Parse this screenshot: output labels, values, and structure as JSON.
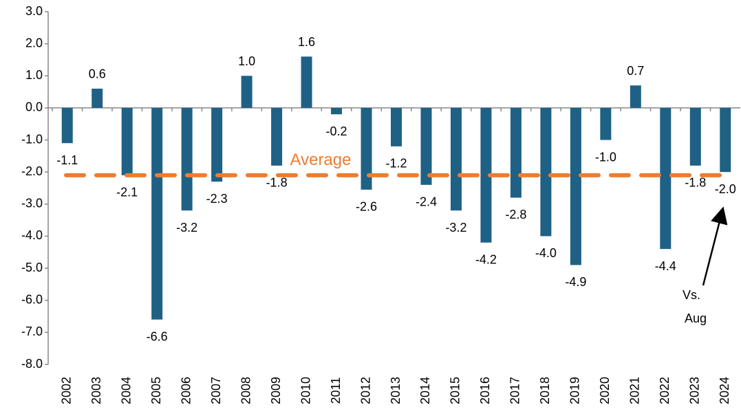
{
  "chart_data": {
    "type": "bar",
    "categories": [
      "2002",
      "2003",
      "2004",
      "2005",
      "2006",
      "2007",
      "2008",
      "2009",
      "2010",
      "2011",
      "2012",
      "2013",
      "2014",
      "2015",
      "2016",
      "2017",
      "2018",
      "2019",
      "2020",
      "2021",
      "2022",
      "2023",
      "2024"
    ],
    "values": [
      -1.1,
      0.6,
      -2.1,
      -6.6,
      -3.2,
      -2.3,
      1.0,
      -1.8,
      1.6,
      -0.2,
      -2.55,
      -1.2,
      -2.4,
      -3.2,
      -4.2,
      -2.8,
      -4.0,
      -4.9,
      -1.0,
      0.7,
      -4.4,
      -1.8,
      -2.0
    ],
    "value_labels": [
      "-1.1",
      "0.6",
      "-2.1",
      "-6.6",
      "-3.2",
      "-2.3",
      "1.0",
      "-1.8",
      "1.6",
      "-0.2",
      "-2.6",
      "-1.2",
      "-2.4",
      "-3.2",
      "-4.2",
      "-2.8",
      "-4.0",
      "-4.9",
      "-1.0",
      "0.7",
      "-4.4",
      "-1.8",
      "-2.0"
    ],
    "color": "#1f6185",
    "ylim": [
      -8,
      3
    ],
    "yticks": [
      {
        "value": 3,
        "label": "3.0"
      },
      {
        "value": 2,
        "label": "2.0"
      },
      {
        "value": 1,
        "label": "1.0"
      },
      {
        "value": 0,
        "label": "0.0"
      },
      {
        "value": -1,
        "label": "-1.0"
      },
      {
        "value": -2,
        "label": "-2.0"
      },
      {
        "value": -3,
        "label": "-3.0"
      },
      {
        "value": -4,
        "label": "-4.0"
      },
      {
        "value": -5,
        "label": "-5.0"
      },
      {
        "value": -6,
        "label": "-6.0"
      },
      {
        "value": -7,
        "label": "-7.0"
      },
      {
        "value": -8,
        "label": "-8.0"
      }
    ],
    "grid": false,
    "average": {
      "label": "Average",
      "value": -2.1,
      "color": "#ed7d31"
    },
    "annotation": [
      "Vs.",
      "Aug"
    ]
  }
}
